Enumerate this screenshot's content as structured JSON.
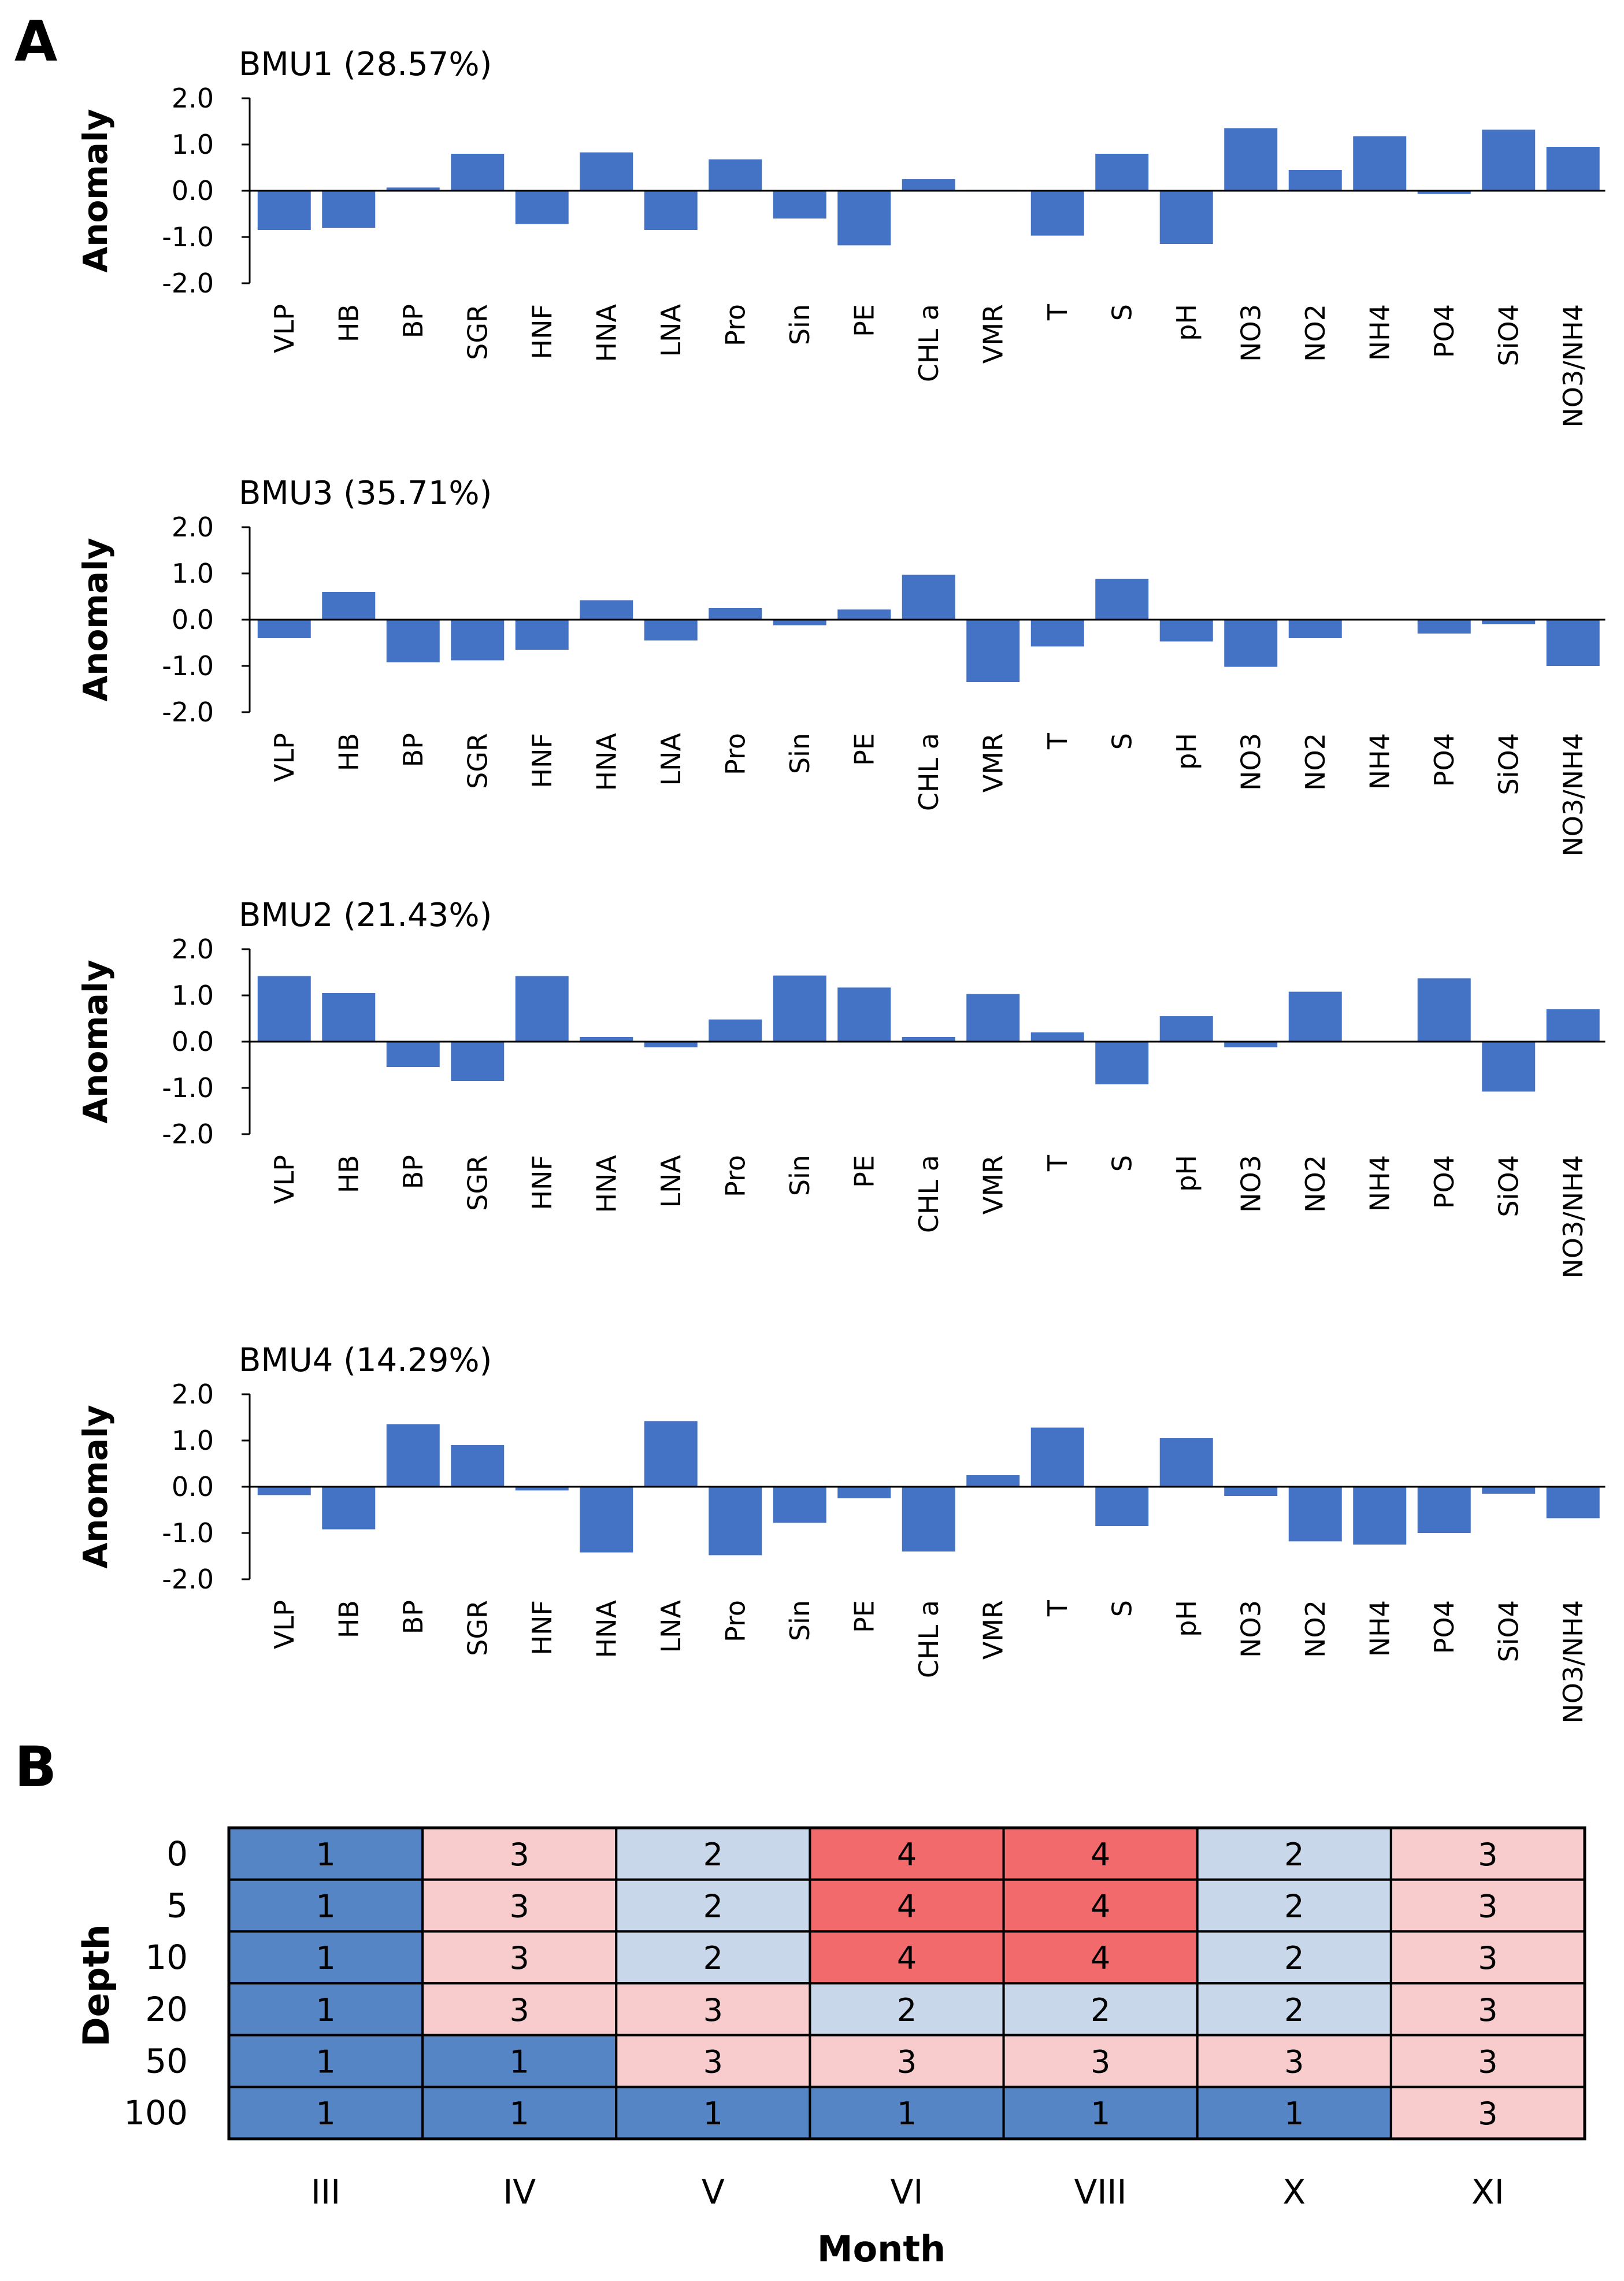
{
  "figure": {
    "panel_a_label": "A",
    "panel_b_label": "B"
  },
  "colors": {
    "bar": "#4472C4",
    "axis": "#000000",
    "heatmap": {
      "1": "#5585C5",
      "2": "#C8D7EA",
      "3": "#F8CBCD",
      "4": "#F36A6C"
    }
  },
  "chart_data": [
    {
      "type": "bar",
      "title": "BMU1 (28.57%)",
      "ylabel": "Anomaly",
      "xlabel": "",
      "ylim": [
        -2.0,
        2.0
      ],
      "yticks": [
        "2.0",
        "1.0",
        "0.0",
        "-1.0",
        "-2.0"
      ],
      "categories": [
        "VLP",
        "HB",
        "BP",
        "SGR",
        "HNF",
        "HNA",
        "LNA",
        "Pro",
        "Sin",
        "PE",
        "CHL a",
        "VMR",
        "T",
        "S",
        "pH",
        "NO3",
        "NO2",
        "NH4",
        "PO4",
        "SiO4",
        "NO3/NH4"
      ],
      "values": [
        -0.85,
        -0.8,
        0.07,
        0.8,
        -0.72,
        0.83,
        -0.85,
        0.68,
        -0.6,
        -1.18,
        0.25,
        0.02,
        -0.97,
        0.8,
        -1.15,
        1.35,
        0.45,
        1.18,
        -0.07,
        1.32,
        0.95
      ]
    },
    {
      "type": "bar",
      "title": "BMU3 (35.71%)",
      "ylabel": "Anomaly",
      "xlabel": "",
      "ylim": [
        -2.0,
        2.0
      ],
      "yticks": [
        "2.0",
        "1.0",
        "0.0",
        "-1.0",
        "-2.0"
      ],
      "categories": [
        "VLP",
        "HB",
        "BP",
        "SGR",
        "HNF",
        "HNA",
        "LNA",
        "Pro",
        "Sin",
        "PE",
        "CHL a",
        "VMR",
        "T",
        "S",
        "pH",
        "NO3",
        "NO2",
        "NH4",
        "PO4",
        "SiO4",
        "NO3/NH4"
      ],
      "values": [
        -0.4,
        0.6,
        -0.92,
        -0.88,
        -0.65,
        0.42,
        -0.45,
        0.25,
        -0.12,
        0.22,
        0.97,
        -1.35,
        -0.58,
        0.88,
        -0.47,
        -1.02,
        -0.4,
        0.0,
        -0.3,
        -0.1,
        -1.0
      ]
    },
    {
      "type": "bar",
      "title": "BMU2 (21.43%)",
      "ylabel": "Anomaly",
      "xlabel": "",
      "ylim": [
        -2.0,
        2.0
      ],
      "yticks": [
        "2.0",
        "1.0",
        "0.0",
        "-1.0",
        "-2.0"
      ],
      "categories": [
        "VLP",
        "HB",
        "BP",
        "SGR",
        "HNF",
        "HNA",
        "LNA",
        "Pro",
        "Sin",
        "PE",
        "CHL a",
        "VMR",
        "T",
        "S",
        "pH",
        "NO3",
        "NO2",
        "NH4",
        "PO4",
        "SiO4",
        "NO3/NH4"
      ],
      "values": [
        1.42,
        1.05,
        -0.55,
        -0.85,
        1.42,
        0.1,
        -0.12,
        0.48,
        1.43,
        1.17,
        0.1,
        1.03,
        0.2,
        -0.92,
        0.55,
        -0.12,
        1.08,
        0.0,
        1.37,
        -1.08,
        0.7
      ]
    },
    {
      "type": "bar",
      "title": "BMU4 (14.29%)",
      "ylabel": "Anomaly",
      "xlabel": "",
      "ylim": [
        -2.0,
        2.0
      ],
      "yticks": [
        "2.0",
        "1.0",
        "0.0",
        "-1.0",
        "-2.0"
      ],
      "categories": [
        "VLP",
        "HB",
        "BP",
        "SGR",
        "HNF",
        "HNA",
        "LNA",
        "Pro",
        "Sin",
        "PE",
        "CHL a",
        "VMR",
        "T",
        "S",
        "pH",
        "NO3",
        "NO2",
        "NH4",
        "PO4",
        "SiO4",
        "NO3/NH4"
      ],
      "values": [
        -0.18,
        -0.92,
        1.35,
        0.9,
        -0.08,
        -1.42,
        1.42,
        -1.48,
        -0.78,
        -0.25,
        -1.4,
        0.25,
        1.28,
        -0.85,
        1.05,
        -0.2,
        -1.18,
        -1.25,
        -1.0,
        -0.15,
        -0.68
      ]
    },
    {
      "type": "heatmap",
      "title": "",
      "xlabel": "Month",
      "ylabel": "Depth",
      "x": [
        "III",
        "IV",
        "V",
        "VI",
        "VIII",
        "X",
        "XI"
      ],
      "y": [
        "0",
        "5",
        "10",
        "20",
        "50",
        "100"
      ],
      "values": [
        [
          1,
          3,
          2,
          4,
          4,
          2,
          3
        ],
        [
          1,
          3,
          2,
          4,
          4,
          2,
          3
        ],
        [
          1,
          3,
          2,
          4,
          4,
          2,
          3
        ],
        [
          1,
          3,
          3,
          2,
          2,
          2,
          3
        ],
        [
          1,
          1,
          3,
          3,
          3,
          3,
          3
        ],
        [
          1,
          1,
          1,
          1,
          1,
          1,
          3
        ]
      ]
    }
  ]
}
